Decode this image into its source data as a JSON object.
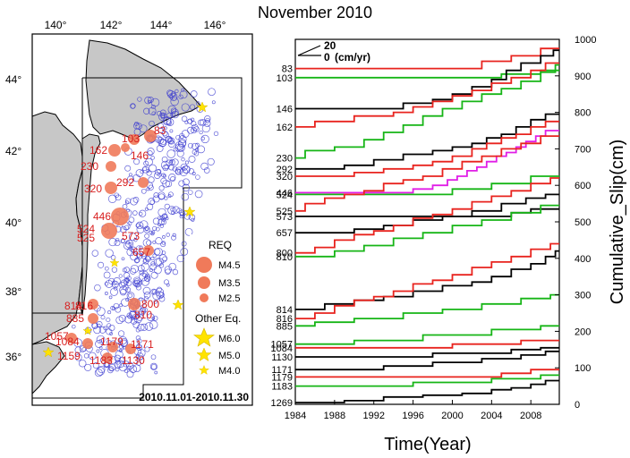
{
  "title": "November 2010",
  "map": {
    "lon_ticks": [
      "140°",
      "142°",
      "144°",
      "146°"
    ],
    "lat_ticks": [
      "44°",
      "42°",
      "40°",
      "38°",
      "36°"
    ],
    "date_range": "2010.11.01-2010.11.30",
    "event_labels": [
      "83",
      "103",
      "162",
      "146",
      "230",
      "320",
      "292",
      "446",
      "524",
      "525",
      "573",
      "657",
      "814",
      "816",
      "885",
      "800",
      "810",
      "1057",
      "1084",
      "1179",
      "1171",
      "1159",
      "1183",
      "1130"
    ],
    "legend": {
      "req_title": "REQ",
      "req_items": [
        "M4.5",
        "M3.5",
        "M2.5"
      ],
      "other_title": "Other Eq.",
      "other_items": [
        "M6.0",
        "M5.0",
        "M4.0"
      ]
    }
  },
  "chart_data": {
    "type": "line",
    "xlabel": "Time(Year)",
    "ylabel": "Cumulative_Slip(cm)",
    "xlim": [
      1984,
      2010.9
    ],
    "ylim": [
      0,
      1000
    ],
    "x_ticks": [
      1984,
      1988,
      1992,
      1996,
      2000,
      2004,
      2008
    ],
    "y_ticks": [
      0,
      100,
      200,
      300,
      400,
      500,
      600,
      700,
      800,
      900,
      1000
    ],
    "scale_bar": {
      "value": "20",
      "zero": "0",
      "unit": "(cm/yr)"
    },
    "left_labels": [
      "83",
      "103",
      "146",
      "162",
      "230",
      "292",
      "320",
      "446",
      "524",
      "525",
      "573",
      "657",
      "800",
      "810",
      "814",
      "816",
      "885",
      "1057",
      "1084",
      "1130",
      "1171",
      "1179",
      "1183",
      "1269"
    ],
    "colors": {
      "black": "#000000",
      "red": "#e8231e",
      "green": "#16b516",
      "magenta": "#e01ee6"
    },
    "series": [
      {
        "label": "83",
        "color": "red",
        "start": 920,
        "steps": [
          [
            2003,
            20
          ],
          [
            2006,
            15
          ],
          [
            2009,
            20
          ]
        ]
      },
      {
        "label": "103",
        "color": "green",
        "start": 895,
        "steps": [
          [
            2005,
            10
          ],
          [
            2009,
            10
          ]
        ]
      },
      {
        "label": "146",
        "color": "black",
        "start": 810,
        "steps": [
          [
            1995,
            15
          ],
          [
            1998,
            10
          ],
          [
            2000,
            15
          ],
          [
            2002,
            20
          ],
          [
            2004,
            20
          ],
          [
            2005.5,
            25
          ],
          [
            2007,
            20
          ],
          [
            2009,
            20
          ],
          [
            2010.3,
            15
          ]
        ]
      },
      {
        "label": "162",
        "color": "red",
        "start": 760,
        "steps": [
          [
            1986,
            15
          ],
          [
            1990,
            15
          ],
          [
            1994,
            10
          ],
          [
            1996,
            15
          ],
          [
            1998,
            15
          ],
          [
            2000,
            15
          ],
          [
            2002,
            15
          ],
          [
            2004,
            20
          ],
          [
            2006,
            15
          ],
          [
            2008,
            20
          ],
          [
            2009.5,
            20
          ]
        ]
      },
      {
        "label": "230",
        "color": "green",
        "start": 675,
        "steps": [
          [
            1985,
            20
          ],
          [
            1988,
            10
          ],
          [
            1991,
            20
          ],
          [
            1993,
            20
          ],
          [
            1995,
            20
          ],
          [
            1997,
            25
          ],
          [
            1999,
            20
          ],
          [
            2001,
            20
          ],
          [
            2003,
            20
          ],
          [
            2005,
            15
          ],
          [
            2007,
            20
          ],
          [
            2009,
            25
          ],
          [
            2010.5,
            20
          ]
        ]
      },
      {
        "label": "292",
        "color": "black",
        "start": 645,
        "steps": [
          [
            1989,
            10
          ],
          [
            1992,
            15
          ],
          [
            1995,
            15
          ],
          [
            1998,
            10
          ],
          [
            2000,
            10
          ],
          [
            2002,
            10
          ],
          [
            2003.5,
            15
          ],
          [
            2005,
            10
          ],
          [
            2006.5,
            20
          ],
          [
            2008,
            20
          ],
          [
            2009.5,
            15
          ]
        ]
      },
      {
        "label": "320",
        "color": "red",
        "start": 625,
        "steps": [
          [
            1990,
            10
          ],
          [
            1993,
            10
          ],
          [
            1996,
            10
          ],
          [
            1998,
            10
          ],
          [
            2000,
            15
          ],
          [
            2002,
            20
          ],
          [
            2003.5,
            15
          ],
          [
            2005,
            15
          ],
          [
            2006.5,
            10
          ],
          [
            2008,
            20
          ],
          [
            2009.5,
            15
          ]
        ]
      },
      {
        "label": "446",
        "color": "magenta",
        "start": 580,
        "steps": [
          [
            1996,
            10
          ],
          [
            1998,
            10
          ],
          [
            1999.5,
            15
          ],
          [
            2000.5,
            10
          ],
          [
            2001.5,
            15
          ],
          [
            2002.5,
            10
          ],
          [
            2003.5,
            15
          ],
          [
            2004.5,
            15
          ],
          [
            2005.5,
            10
          ],
          [
            2006.5,
            15
          ],
          [
            2007.5,
            15
          ],
          [
            2008.5,
            15
          ],
          [
            2009.5,
            15
          ]
        ]
      },
      {
        "label": "524",
        "color": "green",
        "start": 575,
        "steps": [
          [
            2000,
            15
          ],
          [
            2004,
            15
          ],
          [
            2008,
            20
          ]
        ]
      },
      {
        "label": "525",
        "color": "red",
        "start": 530,
        "steps": [
          [
            1985,
            20
          ],
          [
            1987,
            15
          ],
          [
            1989,
            10
          ],
          [
            1991,
            10
          ],
          [
            1993,
            20
          ],
          [
            1995,
            10
          ],
          [
            1997,
            10
          ],
          [
            1999,
            20
          ],
          [
            2001,
            20
          ],
          [
            2003,
            15
          ],
          [
            2005,
            20
          ],
          [
            2007,
            15
          ],
          [
            2009,
            20
          ]
        ]
      },
      {
        "label": "573",
        "color": "black",
        "start": 515,
        "steps": [
          [
            2006,
            10
          ],
          [
            2008,
            10
          ]
        ]
      },
      {
        "label": "657",
        "color": "black",
        "start": 470,
        "steps": [
          [
            1990,
            10
          ],
          [
            1993,
            10
          ],
          [
            1996,
            15
          ],
          [
            1999,
            10
          ],
          [
            2002,
            15
          ],
          [
            2005,
            20
          ],
          [
            2007.5,
            15
          ],
          [
            2009.5,
            10
          ]
        ]
      },
      {
        "label": "800",
        "color": "red",
        "start": 415,
        "steps": [
          [
            1986,
            15
          ],
          [
            1988,
            20
          ],
          [
            1990,
            15
          ],
          [
            1992,
            10
          ],
          [
            1994,
            15
          ],
          [
            1996,
            20
          ],
          [
            1998,
            10
          ],
          [
            2000,
            15
          ],
          [
            2002,
            20
          ],
          [
            2004,
            15
          ],
          [
            2006,
            15
          ],
          [
            2008,
            20
          ],
          [
            2010,
            15
          ]
        ]
      },
      {
        "label": "810",
        "color": "green",
        "start": 405,
        "steps": [
          [
            1988,
            15
          ],
          [
            1991,
            15
          ],
          [
            1994,
            20
          ],
          [
            1997,
            15
          ],
          [
            2000,
            20
          ],
          [
            2003,
            15
          ],
          [
            2006,
            20
          ],
          [
            2009,
            20
          ]
        ]
      },
      {
        "label": "814",
        "color": "black",
        "start": 260,
        "steps": [
          [
            1987,
            15
          ],
          [
            1990,
            10
          ],
          [
            1993,
            10
          ],
          [
            1996,
            15
          ],
          [
            1999,
            15
          ],
          [
            2002,
            10
          ],
          [
            2004,
            15
          ],
          [
            2006,
            20
          ],
          [
            2008,
            15
          ],
          [
            2009.5,
            20
          ],
          [
            2010.5,
            15
          ]
        ]
      },
      {
        "label": "816",
        "color": "red",
        "start": 235,
        "steps": [
          [
            1986,
            15
          ],
          [
            1988,
            20
          ],
          [
            1990,
            15
          ],
          [
            1992,
            10
          ],
          [
            1994,
            15
          ],
          [
            1996,
            20
          ],
          [
            1998,
            10
          ],
          [
            2000,
            15
          ],
          [
            2002,
            20
          ],
          [
            2004,
            15
          ],
          [
            2006,
            15
          ],
          [
            2008,
            20
          ],
          [
            2010,
            15
          ]
        ]
      },
      {
        "label": "885",
        "color": "green",
        "start": 215,
        "steps": [
          [
            1986,
            10
          ],
          [
            1990,
            10
          ],
          [
            1995,
            15
          ],
          [
            1999,
            10
          ],
          [
            2003,
            15
          ],
          [
            2007,
            15
          ],
          [
            2010,
            10
          ]
        ]
      },
      {
        "label": "1057",
        "color": "green",
        "start": 165,
        "steps": [
          [
            1990,
            10
          ],
          [
            1997,
            15
          ],
          [
            2004,
            15
          ],
          [
            2009,
            10
          ]
        ]
      },
      {
        "label": "1084",
        "color": "red",
        "start": 155,
        "steps": [
          [
            2000,
            10
          ],
          [
            2007,
            10
          ]
        ]
      },
      {
        "label": "1130",
        "color": "black",
        "start": 130,
        "steps": [
          [
            1998,
            10
          ],
          [
            2006,
            10
          ],
          [
            2009,
            5
          ]
        ]
      },
      {
        "label": "1171",
        "color": "black",
        "start": 95,
        "steps": [
          [
            1993,
            10
          ],
          [
            1998,
            10
          ],
          [
            2003,
            10
          ],
          [
            2007,
            10
          ],
          [
            2009.5,
            10
          ]
        ]
      },
      {
        "label": "1179",
        "color": "red",
        "start": 75,
        "steps": [
          [
            2005,
            10
          ],
          [
            2008,
            10
          ]
        ]
      },
      {
        "label": "1183",
        "color": "green",
        "start": 50,
        "steps": [
          [
            1996,
            10
          ],
          [
            2004,
            10
          ],
          [
            2009,
            10
          ]
        ]
      },
      {
        "label": "1269",
        "color": "black",
        "start": 5,
        "steps": [
          [
            1989,
            5
          ],
          [
            1993,
            10
          ],
          [
            1997,
            5
          ],
          [
            2001,
            5
          ],
          [
            2004,
            10
          ],
          [
            2006,
            5
          ],
          [
            2008,
            10
          ],
          [
            2009.5,
            10
          ]
        ]
      }
    ]
  }
}
